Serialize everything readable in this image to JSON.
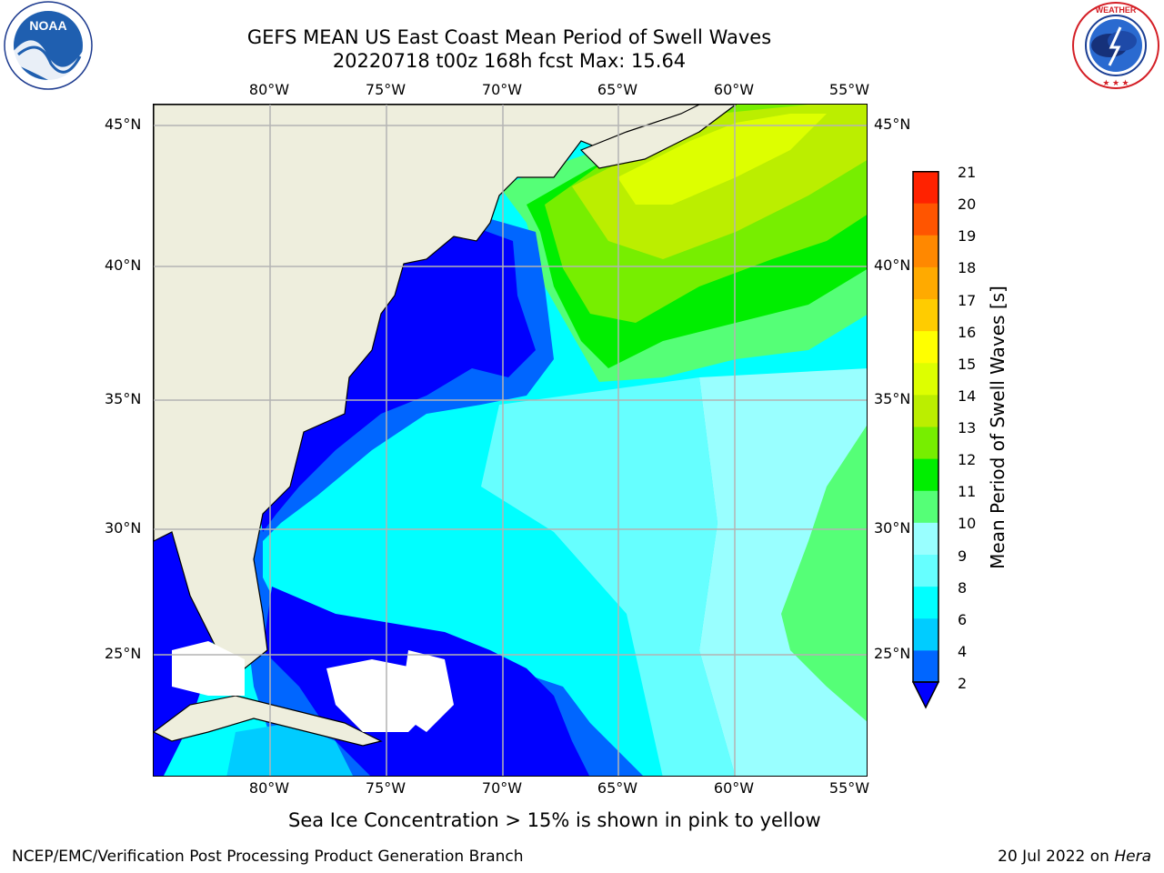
{
  "header": {
    "title_line1": "GEFS MEAN US East Coast Mean Period of Swell Waves",
    "title_line2": "20220718 t00z 168h fcst   Max: 15.64"
  },
  "logos": {
    "left": {
      "icon": "noaa-logo",
      "text": "NOAA",
      "ring_text": "NATIONAL OCEANIC AND ATMOSPHERIC ADMINISTRATION · U.S. DEPARTMENT OF COMMERCE"
    },
    "right": {
      "icon": "national-weather-service-logo",
      "ring_text": "NATIONAL WEATHER SERVICE"
    }
  },
  "map": {
    "longitude_ticks": [
      "80°W",
      "75°W",
      "70°W",
      "65°W",
      "60°W",
      "55°W"
    ],
    "latitude_ticks": [
      "45°N",
      "40°N",
      "35°N",
      "30°N",
      "25°N"
    ],
    "grid": true,
    "extent": {
      "lon": [
        -85,
        -54.3
      ],
      "lat": [
        20.5,
        46
      ]
    },
    "field": "Mean Period of Swell Waves",
    "field_max": 15.64,
    "colors": {
      "land": "#eeeedd",
      "missing": "#ffffff",
      "grid": "#b4b4b4",
      "coastline": "#000000"
    }
  },
  "colorbar": {
    "title": "Mean Period of Swell Waves [s]",
    "labels": [
      "21",
      "20",
      "19",
      "18",
      "17",
      "16",
      "15",
      "14",
      "13",
      "12",
      "11",
      "10",
      "9",
      "8",
      "6",
      "4",
      "2"
    ],
    "levels": [
      2,
      4,
      6,
      8,
      9,
      10,
      11,
      12,
      13,
      14,
      15,
      16,
      17,
      18,
      19,
      20,
      21
    ],
    "colors": [
      "#0000ff",
      "#0066ff",
      "#00ccff",
      "#00ffff",
      "#66ffff",
      "#99ffff",
      "#55ff77",
      "#00ee00",
      "#77ee00",
      "#bbee00",
      "#ddff00",
      "#ffff00",
      "#ffcc00",
      "#ffaa00",
      "#ff8800",
      "#ff5500",
      "#ff2200",
      "#ff0000"
    ],
    "extend": "min"
  },
  "footnote": "Sea Ice Concentration > 15% is shown in pink to yellow",
  "credits": {
    "left": "NCEP/EMC/Verification Post Processing Product Generation Branch",
    "right_date": "20 Jul 2022 on",
    "right_host": "Hera"
  }
}
